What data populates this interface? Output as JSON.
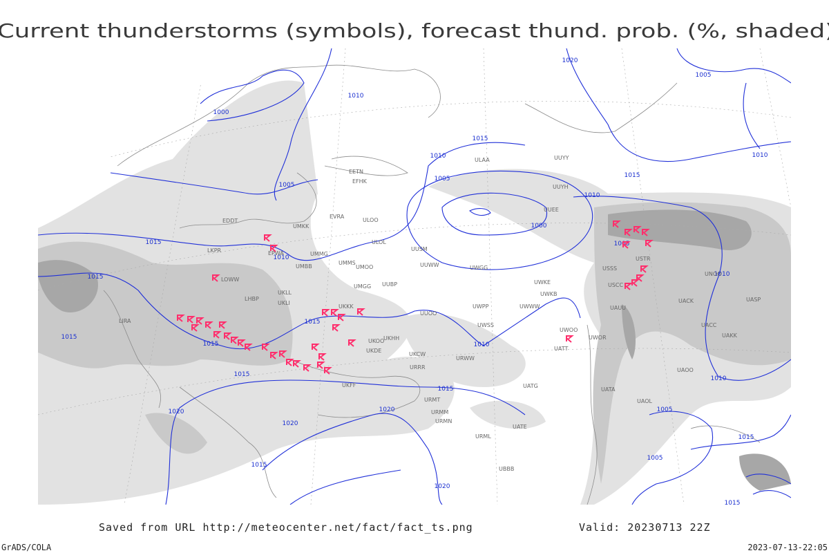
{
  "title": "Current thunderstorms (symbols), forecast thund. prob. (%, shaded)",
  "footer": {
    "source": "Saved from URL http://meteocenter.net/fact/fact_ts.png",
    "valid": "Valid: 20230713 22Z",
    "software": "GrADS/COLA",
    "timestamp": "2023-07-13-22:05"
  },
  "isobar_labels": [
    "1000",
    "1010",
    "1005",
    "1015",
    "1010",
    "1015",
    "1015",
    "1015",
    "1015",
    "1015",
    "1020",
    "1020",
    "1015",
    "1020",
    "1020",
    "1015",
    "1010",
    "1015",
    "1010",
    "1005",
    "1000",
    "1020",
    "1005",
    "1010",
    "1015",
    "1010",
    "1005",
    "1010",
    "1010",
    "1005",
    "1015",
    "1005",
    "1015"
  ],
  "stations": [
    "UKKK",
    "UMMS",
    "UMOO",
    "UMGG",
    "UUBP",
    "ULOL",
    "ULOO",
    "EVRA",
    "EETN",
    "EFHK",
    "UUYH",
    "UUYY",
    "ULAA",
    "UUOO",
    "UWPP",
    "UWWW",
    "UWKE",
    "UWKB",
    "UWSS",
    "URRR",
    "UKCW",
    "URWW",
    "UATG",
    "UATE",
    "URML",
    "UBBB",
    "USSS",
    "USCC",
    "UNOO",
    "USTR",
    "UAUU",
    "UACK",
    "UASP",
    "UACC",
    "UAKK",
    "UAOO",
    "UATA",
    "UAOL",
    "UATT",
    "UWOO",
    "UWOR",
    "URMT",
    "URMM",
    "URMN",
    "UKFF",
    "UKHH",
    "UKDE",
    "UKOO",
    "UMMG",
    "UMBB",
    "UKLL",
    "UKLI",
    "EPWA",
    "UMKK",
    "EDDT",
    "LKPR",
    "LOWW",
    "LHBP",
    "LIRA",
    "UUSM",
    "UUWW",
    "UWGG",
    "UUEE"
  ]
}
